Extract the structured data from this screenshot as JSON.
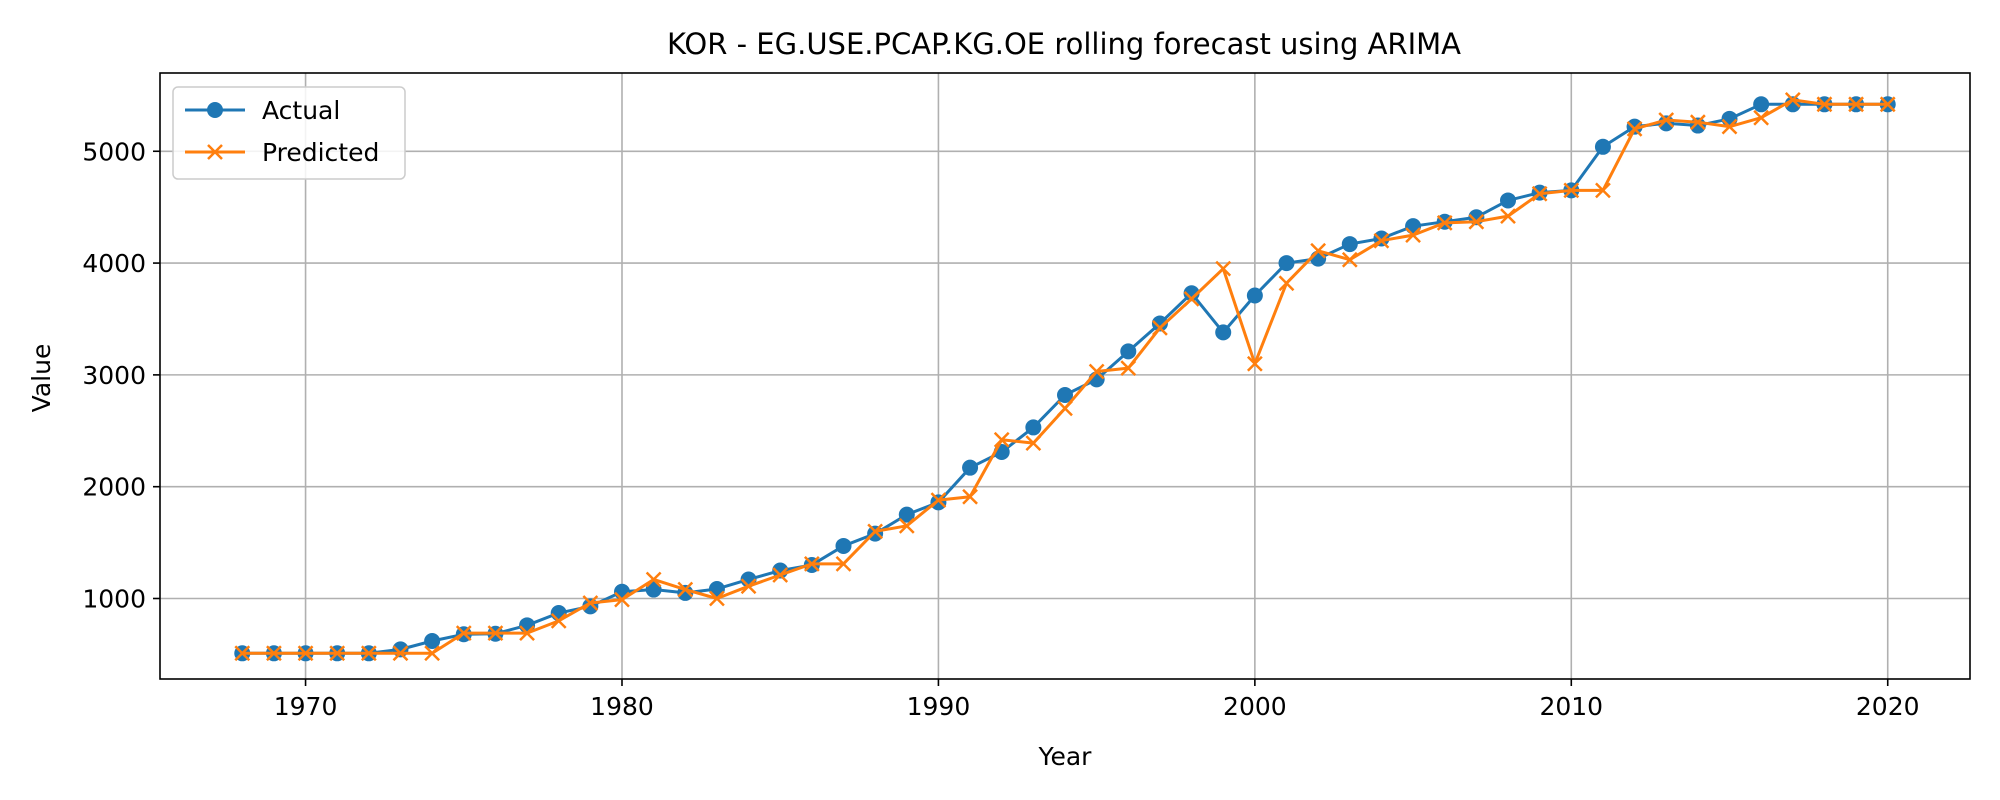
{
  "chart_data": {
    "type": "line",
    "title": "KOR - EG.USE.PCAP.KG.OE rolling forecast using ARIMA",
    "xlabel": "Year",
    "ylabel": "Value",
    "xlim": [
      1965.4,
      2022.6
    ],
    "ylim": [
      280,
      5700
    ],
    "xticks": [
      1970,
      1980,
      1990,
      2000,
      2010,
      2020
    ],
    "yticks": [
      1000,
      2000,
      3000,
      4000,
      5000
    ],
    "grid": true,
    "legend_position": "top-left",
    "x": [
      1968,
      1969,
      1970,
      1971,
      1972,
      1973,
      1974,
      1975,
      1976,
      1977,
      1978,
      1979,
      1980,
      1981,
      1982,
      1983,
      1984,
      1985,
      1986,
      1987,
      1988,
      1989,
      1990,
      1991,
      1992,
      1993,
      1994,
      1995,
      1996,
      1997,
      1998,
      1999,
      2000,
      2001,
      2002,
      2003,
      2004,
      2005,
      2006,
      2007,
      2008,
      2009,
      2010,
      2011,
      2012,
      2013,
      2014,
      2015,
      2016,
      2017,
      2018,
      2019,
      2020
    ],
    "series": [
      {
        "name": "Actual",
        "color": "#1f77b4",
        "marker": "circle",
        "values": [
          510,
          510,
          510,
          510,
          510,
          545,
          620,
          680,
          685,
          760,
          870,
          930,
          1060,
          1080,
          1050,
          1085,
          1170,
          1250,
          1300,
          1470,
          1580,
          1750,
          1860,
          2170,
          2310,
          2530,
          2820,
          2960,
          3210,
          3460,
          3730,
          3380,
          3710,
          4000,
          4040,
          4170,
          4220,
          4330,
          4370,
          4410,
          4560,
          4630,
          4650,
          5040,
          5220,
          5250,
          5230,
          5290,
          5420,
          5420,
          5420,
          5420,
          5420
        ]
      },
      {
        "name": "Predicted",
        "color": "#ff7f0e",
        "marker": "x",
        "values": [
          510,
          510,
          510,
          510,
          510,
          510,
          510,
          690,
          690,
          690,
          800,
          960,
          990,
          1170,
          1080,
          1000,
          1110,
          1210,
          1310,
          1310,
          1600,
          1650,
          1880,
          1910,
          2420,
          2390,
          2700,
          3030,
          3060,
          3420,
          3680,
          3950,
          3100,
          3820,
          4110,
          4030,
          4200,
          4250,
          4360,
          4370,
          4420,
          4620,
          4650,
          4650,
          5200,
          5280,
          5260,
          5220,
          5300,
          5460,
          5420,
          5420,
          5420
        ]
      }
    ]
  }
}
